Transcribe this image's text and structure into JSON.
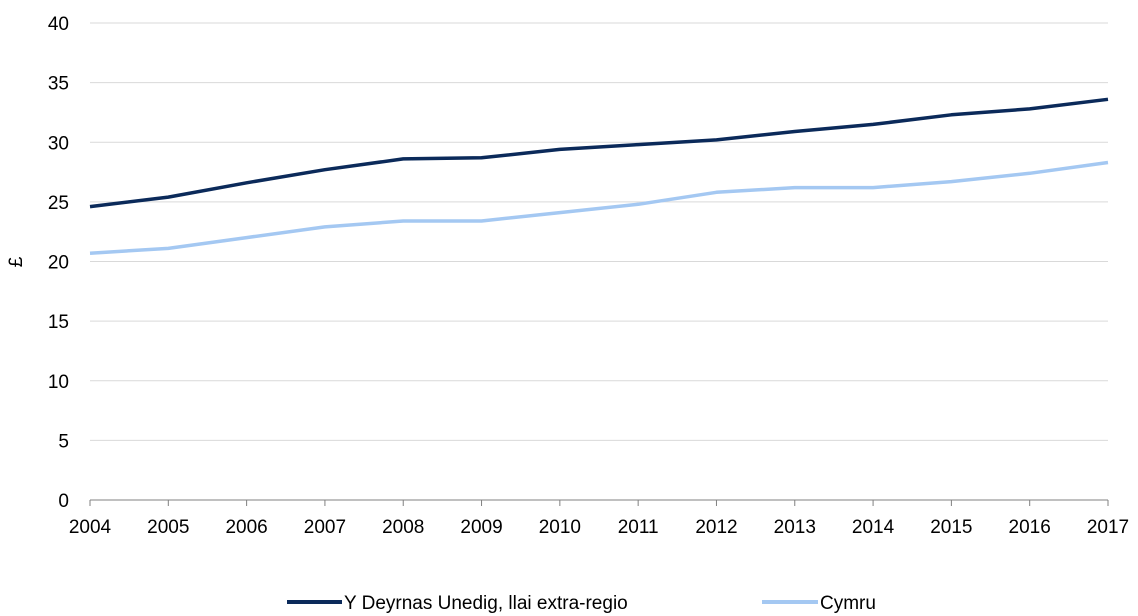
{
  "chart_data": {
    "type": "line",
    "title": "",
    "xlabel": "",
    "ylabel": "£",
    "categories": [
      "2004",
      "2005",
      "2006",
      "2007",
      "2008",
      "2009",
      "2010",
      "2011",
      "2012",
      "2013",
      "2014",
      "2015",
      "2016",
      "2017"
    ],
    "ylim": [
      0,
      40
    ],
    "yticks": [
      0,
      5,
      10,
      15,
      20,
      25,
      30,
      35,
      40
    ],
    "grid": true,
    "legend_position": "bottom",
    "series": [
      {
        "name": "Y Deyrnas Unedig, llai extra-regio",
        "color": "#0b2a5a",
        "values": [
          24.6,
          25.4,
          26.6,
          27.7,
          28.6,
          28.7,
          29.4,
          29.8,
          30.2,
          30.9,
          31.5,
          32.3,
          32.8,
          33.6
        ]
      },
      {
        "name": "Cymru",
        "color": "#a4c8f2",
        "values": [
          20.7,
          21.1,
          22.0,
          22.9,
          23.4,
          23.4,
          24.1,
          24.8,
          25.8,
          26.2,
          26.2,
          26.7,
          27.4,
          28.3
        ]
      }
    ]
  }
}
